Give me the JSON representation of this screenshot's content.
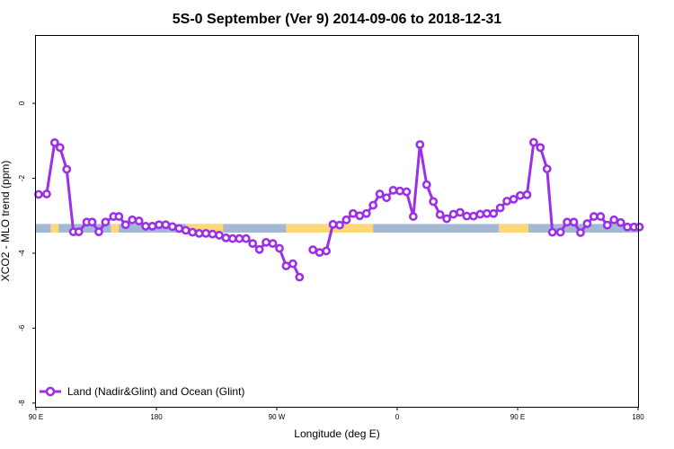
{
  "chart_data": {
    "type": "line",
    "title": "5S-0 September (Ver 9)   2014-09-06 to 2018-12-31",
    "xlabel": "Longitude (deg E)",
    "ylabel": "XCO2 - MLO trend (ppm)",
    "xlim": [
      90,
      540
    ],
    "ylim": [
      -8.1,
      1.8
    ],
    "x_ticks": [
      {
        "value": 90,
        "label": "90 E"
      },
      {
        "value": 180,
        "label": "180"
      },
      {
        "value": 270,
        "label": "90 W"
      },
      {
        "value": 360,
        "label": "0"
      },
      {
        "value": 450,
        "label": "90 E"
      },
      {
        "value": 540,
        "label": "180"
      }
    ],
    "y_ticks": [
      {
        "value": 0,
        "label": "0"
      },
      {
        "value": -2,
        "label": "-2"
      },
      {
        "value": -4,
        "label": "-4"
      },
      {
        "value": -6,
        "label": "-6"
      },
      {
        "value": -8,
        "label": "-8"
      }
    ],
    "grid": false,
    "legend_position": "bottom-left",
    "surface_band": {
      "y_top": -3.22,
      "y_bottom": -3.45,
      "ocean_color": "#a3b8d5",
      "land_color": "#fdd77a",
      "land_segments": [
        [
          101,
          107
        ],
        [
          152,
          146
        ],
        [
          202,
          230
        ],
        [
          277,
          322
        ],
        [
          312,
          342
        ],
        [
          329,
          337
        ],
        [
          436,
          458
        ]
      ]
    },
    "series": [
      {
        "name": "Land (Nadir&Glint) and Ocean (Glint)",
        "color": "#9b30e8",
        "segments": [
          {
            "x": [
              92,
              98,
              104,
              108,
              113,
              118,
              122,
              128,
              132,
              137,
              142,
              148,
              152,
              157,
              162,
              167,
              172,
              177,
              182,
              187,
              192,
              197,
              202,
              207,
              212,
              217,
              222,
              227,
              232,
              237,
              242,
              247,
              252,
              257,
              262,
              267,
              272,
              277,
              282,
              287
            ],
            "y": [
              -2.43,
              -2.42,
              -1.05,
              -1.18,
              -1.76,
              -3.43,
              -3.43,
              -3.17,
              -3.17,
              -3.43,
              -3.17,
              -3.02,
              -3.02,
              -3.24,
              -3.11,
              -3.14,
              -3.28,
              -3.28,
              -3.24,
              -3.24,
              -3.29,
              -3.34,
              -3.39,
              -3.44,
              -3.47,
              -3.47,
              -3.49,
              -3.52,
              -3.59,
              -3.61,
              -3.61,
              -3.61,
              -3.74,
              -3.9,
              -3.71,
              -3.74,
              -3.87,
              -4.34,
              -4.28,
              -4.64
            ]
          },
          {
            "x": [
              297,
              302,
              307,
              312,
              317,
              322,
              327,
              332,
              337,
              342,
              347,
              352,
              357,
              362,
              367,
              372,
              377,
              382,
              387,
              392,
              397,
              402,
              407,
              412,
              417,
              422,
              427,
              432,
              437,
              442,
              447,
              452,
              457,
              462,
              467,
              472,
              476,
              482,
              487,
              492,
              497,
              502,
              507,
              512,
              517,
              522,
              527,
              532,
              537,
              541
            ],
            "y": [
              -3.91,
              -3.98,
              -3.94,
              -3.23,
              -3.25,
              -3.11,
              -2.94,
              -3.0,
              -2.94,
              -2.72,
              -2.42,
              -2.52,
              -2.32,
              -2.34,
              -2.36,
              -3.02,
              -1.1,
              -2.17,
              -2.62,
              -2.97,
              -3.08,
              -2.96,
              -2.91,
              -3.01,
              -3.01,
              -2.96,
              -2.94,
              -2.94,
              -2.79,
              -2.61,
              -2.56,
              -2.46,
              -2.44,
              -1.04,
              -1.18,
              -1.75,
              -3.44,
              -3.44,
              -3.17,
              -3.17,
              -3.45,
              -3.21,
              -3.02,
              -3.02,
              -3.25,
              -3.11,
              -3.18,
              -3.3,
              -3.3,
              -3.3
            ]
          }
        ]
      }
    ]
  }
}
